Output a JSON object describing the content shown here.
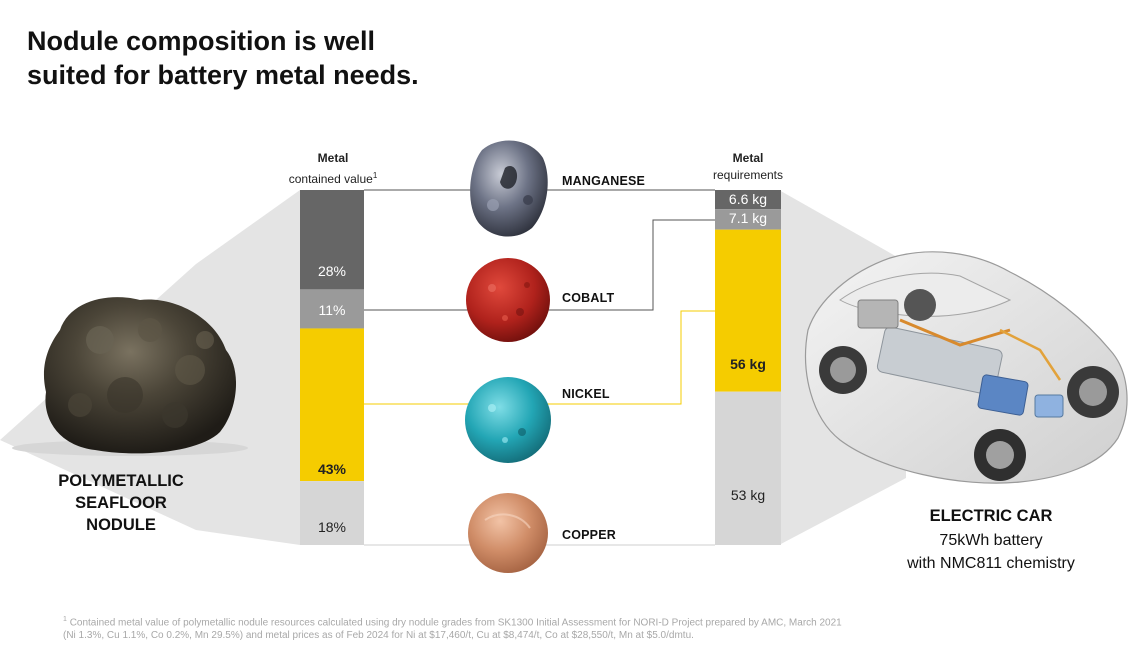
{
  "title": {
    "line1": "Nodule composition is well",
    "line2": "suited for battery metal needs."
  },
  "nodule": {
    "label_line1": "POLYMETALLIC",
    "label_line2": "SEAFLOOR",
    "label_line3": "NODULE"
  },
  "left_column": {
    "heading_line1": "Metal",
    "heading_line2": "contained value",
    "footnote_marker": "1"
  },
  "right_column": {
    "heading_line1": "Metal",
    "heading_line2": "requirements"
  },
  "metals": [
    {
      "name": "MANGANESE",
      "icon": "manganese-rock-icon",
      "color": "#666666"
    },
    {
      "name": "COBALT",
      "icon": "cobalt-granules-icon",
      "color": "#b8251f"
    },
    {
      "name": "NICKEL",
      "icon": "nickel-granules-icon",
      "color": "#2aa9b8"
    },
    {
      "name": "COPPER",
      "icon": "copper-disc-icon",
      "color": "#c97f5a"
    }
  ],
  "car": {
    "title": "ELECTRIC CAR",
    "sub1": "75kWh battery",
    "sub2": "with NMC811 chemistry",
    "icon": "electric-car-cutaway-icon"
  },
  "footnote": {
    "marker": "1",
    "line1": "Contained metal value of polymetallic nodule resources calculated using dry nodule grades from SK1300 Initial Assessment for NORI-D Project prepared by AMC, March 2021",
    "line2": "(Ni 1.3%, Cu 1.1%, Co 0.2%, Mn 29.5%) and metal prices as of Feb 2024 for Ni at $17,460/t, Cu at $8,474/t, Co at $28,550/t, Mn at $5.0/dmtu."
  },
  "chart_data": [
    {
      "type": "bar",
      "stacked": true,
      "title": "Metal contained value",
      "unit": "%",
      "order": "top-to-bottom",
      "segments": [
        {
          "metal": "MANGANESE",
          "value": 28,
          "label": "28%",
          "color": "#666666"
        },
        {
          "metal": "COBALT",
          "value": 11,
          "label": "11%",
          "color": "#9a9a9a"
        },
        {
          "metal": "NICKEL",
          "value": 43,
          "label": "43%",
          "color": "#f5cc00",
          "bold": true
        },
        {
          "metal": "COPPER",
          "value": 18,
          "label": "18%",
          "color": "#d6d6d6"
        }
      ]
    },
    {
      "type": "bar",
      "stacked": true,
      "title": "Metal requirements",
      "unit": "kg",
      "order": "top-to-bottom",
      "segments": [
        {
          "metal": "MANGANESE",
          "value": 6.6,
          "label": "6.6 kg",
          "color": "#666666"
        },
        {
          "metal": "COBALT",
          "value": 7.1,
          "label": "7.1 kg",
          "color": "#9a9a9a"
        },
        {
          "metal": "NICKEL",
          "value": 56,
          "label": "56 kg",
          "color": "#f5cc00",
          "bold": true
        },
        {
          "metal": "COPPER",
          "value": 53,
          "label": "53 kg",
          "color": "#d6d6d6"
        }
      ]
    }
  ]
}
